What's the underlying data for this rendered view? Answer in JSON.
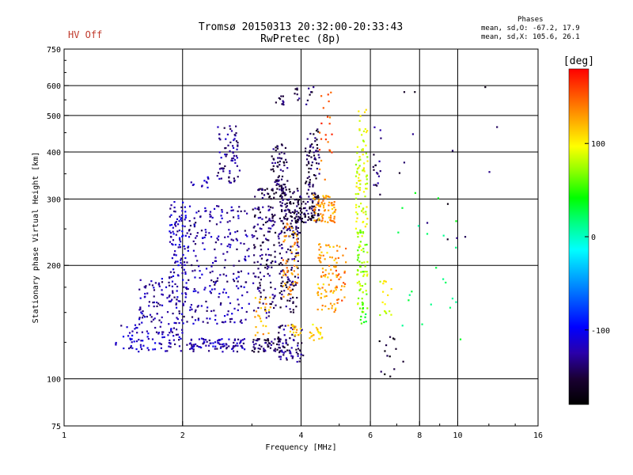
{
  "header": {
    "hv_status": "HV Off",
    "title": "Tromsø 20150313 20:32:00-20:33:43",
    "subtitle": "RwPretec (8p)",
    "phases_heading": "Phases",
    "phases_O": "mean, sd,O: -67.2, 17.9",
    "phases_X": "mean, sd,X: 105.6, 26.1"
  },
  "chart_data": {
    "type": "scatter",
    "xlabel": "Frequency [MHz]",
    "ylabel": "Stationary phase Virtual Height [km]",
    "x_scale": "log",
    "y_scale": "log",
    "xlim": [
      1,
      16
    ],
    "ylim": [
      75,
      750
    ],
    "x_ticks": [
      "1",
      "2",
      "4",
      "6",
      "8",
      "10",
      "16"
    ],
    "x_tick_values": [
      1,
      2,
      4,
      6,
      8,
      10,
      16
    ],
    "x_grid": [
      2,
      4,
      6,
      8,
      10
    ],
    "y_ticks": [
      "75",
      "100",
      "200",
      "300",
      "400",
      "500",
      "600",
      "750"
    ],
    "y_tick_values": [
      75,
      100,
      200,
      300,
      400,
      500,
      600,
      750
    ],
    "y_grid": [
      100,
      200,
      300,
      400,
      500,
      600
    ],
    "grid": true,
    "colorbar": {
      "label": "[deg]",
      "range": [
        -180,
        180
      ],
      "ticks": [
        "100",
        "0",
        "-100"
      ],
      "tick_values": [
        100,
        0,
        -100
      ],
      "colors": [
        "#000000",
        "#1a0033",
        "#2a00aa",
        "#0000ff",
        "#0055ff",
        "#00aaff",
        "#00ffff",
        "#00ff88",
        "#00ff00",
        "#88ff00",
        "#ffff00",
        "#ffaa00",
        "#ff5500",
        "#ff0000"
      ]
    },
    "clusters": [
      {
        "x": [
          1.35,
          2.0
        ],
        "y": [
          118,
          140
        ],
        "phase": -120,
        "n": 90
      },
      {
        "x": [
          1.55,
          2.05
        ],
        "y": [
          140,
          185
        ],
        "phase": -125,
        "n": 110
      },
      {
        "x": [
          1.85,
          2.05
        ],
        "y": [
          185,
          300
        ],
        "phase": -118,
        "n": 90
      },
      {
        "x": [
          2.05,
          2.9
        ],
        "y": [
          118,
          128
        ],
        "phase": -122,
        "n": 90
      },
      {
        "x": [
          2.05,
          2.95
        ],
        "y": [
          140,
          290
        ],
        "phase": -125,
        "n": 230
      },
      {
        "x": [
          2.1,
          2.35
        ],
        "y": [
          320,
          345
        ],
        "phase": -120,
        "n": 12
      },
      {
        "x": [
          2.45,
          2.8
        ],
        "y": [
          330,
          470
        ],
        "phase": -130,
        "n": 70
      },
      {
        "x": [
          3.0,
          3.7
        ],
        "y": [
          118,
          128
        ],
        "phase": -145,
        "n": 70
      },
      {
        "x": [
          3.0,
          3.45
        ],
        "y": [
          145,
          290
        ],
        "phase": -140,
        "n": 130
      },
      {
        "x": [
          3.05,
          3.6
        ],
        "y": [
          300,
          320
        ],
        "phase": -150,
        "n": 35
      },
      {
        "x": [
          3.35,
          3.7
        ],
        "y": [
          320,
          420
        ],
        "phase": -145,
        "n": 60
      },
      {
        "x": [
          3.45,
          3.65
        ],
        "y": [
          520,
          565
        ],
        "phase": -150,
        "n": 10
      },
      {
        "x": [
          3.5,
          4.05
        ],
        "y": [
          110,
          140
        ],
        "phase": -135,
        "n": 55
      },
      {
        "x": [
          3.5,
          3.95
        ],
        "y": [
          150,
          300
        ],
        "phase": -145,
        "n": 120
      },
      {
        "x": [
          3.55,
          4.0
        ],
        "y": [
          240,
          320
        ],
        "phase": -150,
        "n": 75
      },
      {
        "x": [
          3.9,
          4.45
        ],
        "y": [
          260,
          300
        ],
        "phase": -150,
        "n": 70
      },
      {
        "x": [
          4.1,
          4.45
        ],
        "y": [
          300,
          470
        ],
        "phase": -150,
        "n": 75
      },
      {
        "x": [
          3.85,
          4.3
        ],
        "y": [
          520,
          600
        ],
        "phase": -145,
        "n": 14
      },
      {
        "x": [
          3.05,
          3.35
        ],
        "y": [
          130,
          165
        ],
        "phase": 125,
        "n": 25
      },
      {
        "x": [
          3.6,
          3.95
        ],
        "y": [
          165,
          260
        ],
        "phase": 135,
        "n": 55
      },
      {
        "x": [
          3.7,
          4.0
        ],
        "y": [
          130,
          140
        ],
        "phase": 115,
        "n": 18
      },
      {
        "x": [
          4.3,
          4.9
        ],
        "y": [
          260,
          310
        ],
        "phase": 130,
        "n": 70
      },
      {
        "x": [
          4.4,
          4.95
        ],
        "y": [
          150,
          230
        ],
        "phase": 125,
        "n": 80
      },
      {
        "x": [
          4.2,
          4.6
        ],
        "y": [
          125,
          140
        ],
        "phase": 110,
        "n": 20
      },
      {
        "x": [
          4.9,
          5.2
        ],
        "y": [
          160,
          230
        ],
        "phase": 140,
        "n": 25
      },
      {
        "x": [
          4.45,
          4.8
        ],
        "y": [
          330,
          600
        ],
        "phase": 150,
        "n": 22
      },
      {
        "x": [
          5.5,
          5.9
        ],
        "y": [
          250,
          430
        ],
        "phase": 90,
        "n": 75
      },
      {
        "x": [
          5.6,
          5.9
        ],
        "y": [
          430,
          520
        ],
        "phase": 95,
        "n": 12
      },
      {
        "x": [
          5.55,
          5.9
        ],
        "y": [
          150,
          250
        ],
        "phase": 75,
        "n": 70
      },
      {
        "x": [
          5.6,
          5.85
        ],
        "y": [
          140,
          160
        ],
        "phase": 45,
        "n": 12
      },
      {
        "x": [
          6.1,
          6.4
        ],
        "y": [
          300,
          470
        ],
        "phase": -140,
        "n": 18
      },
      {
        "x": [
          6.3,
          6.8
        ],
        "y": [
          140,
          185
        ],
        "phase": 90,
        "n": 16
      },
      {
        "x": [
          6.0,
          7.4
        ],
        "y": [
          100,
          130
        ],
        "phase": -160,
        "n": 14
      },
      {
        "x": [
          7.0,
          10.2
        ],
        "y": [
          110,
          320
        ],
        "phase": 20,
        "n": 22
      },
      {
        "x": [
          7.0,
          13.5
        ],
        "y": [
          230,
          600
        ],
        "phase": -150,
        "n": 14
      }
    ]
  }
}
